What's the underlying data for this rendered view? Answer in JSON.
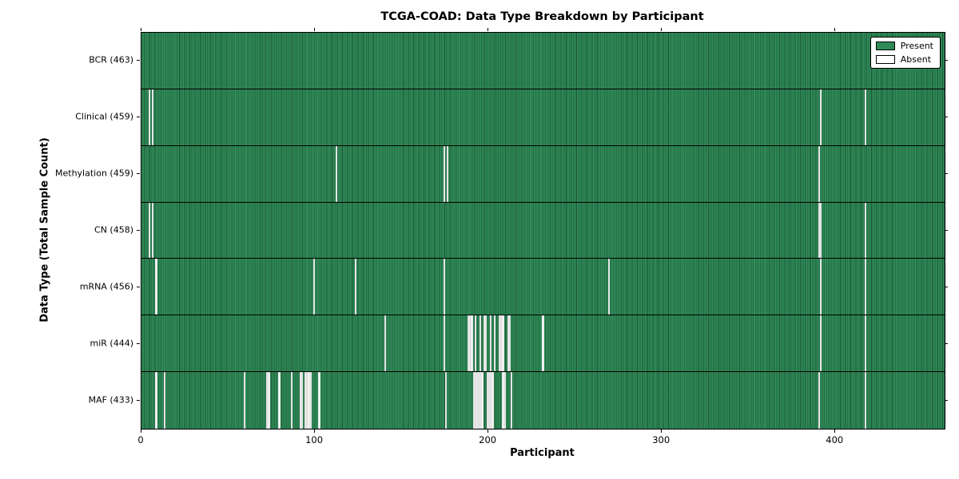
{
  "chart_data": {
    "type": "heatmap",
    "title": "TCGA-COAD: Data Type Breakdown by Participant",
    "xlabel": "Participant",
    "ylabel": "Data Type (Total Sample Count)",
    "x_range": [
      0,
      463
    ],
    "x_ticks": [
      0,
      100,
      200,
      300,
      400
    ],
    "legend": {
      "present": "Present",
      "absent": "Absent"
    },
    "colors": {
      "present": "#2e8b57",
      "absent": "#ffffff",
      "axis": "#000000"
    },
    "legend_position": "upper right",
    "grid": false,
    "rows": [
      {
        "label": "BCR (463)",
        "data_type": "BCR",
        "count": 463,
        "absent": []
      },
      {
        "label": "Clinical (459)",
        "data_type": "Clinical",
        "count": 459,
        "absent": [
          4,
          6,
          391,
          417
        ]
      },
      {
        "label": "Methylation (459)",
        "data_type": "Methylation",
        "count": 459,
        "absent": [
          112,
          174,
          176,
          390
        ]
      },
      {
        "label": "CN (458)",
        "data_type": "CN",
        "count": 458,
        "absent": [
          4,
          6,
          390,
          391,
          417
        ]
      },
      {
        "label": "mRNA (456)",
        "data_type": "mRNA",
        "count": 456,
        "absent": [
          8,
          99,
          123,
          174,
          269,
          391,
          417
        ]
      },
      {
        "label": "miR (444)",
        "data_type": "miR",
        "count": 444,
        "absent": [
          140,
          174,
          188,
          189,
          190,
          192,
          195,
          197,
          198,
          201,
          203,
          206,
          207,
          208,
          211,
          212,
          231,
          391,
          417
        ]
      },
      {
        "label": "MAF (433)",
        "data_type": "MAF",
        "count": 433,
        "absent": [
          8,
          13,
          59,
          72,
          73,
          79,
          86,
          91,
          92,
          94,
          95,
          96,
          97,
          102,
          175,
          191,
          192,
          193,
          194,
          195,
          196,
          199,
          200,
          201,
          202,
          208,
          209,
          213,
          390,
          417
        ]
      }
    ]
  }
}
